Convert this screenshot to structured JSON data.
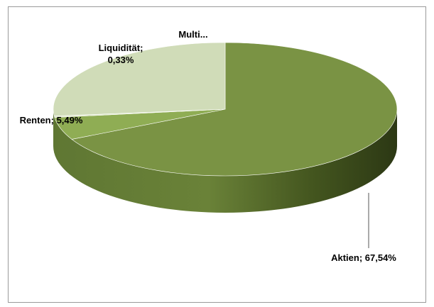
{
  "chart_data": {
    "type": "pie",
    "style": "3d",
    "title": "",
    "legend": "none",
    "slices": [
      {
        "label": "Aktien",
        "value": 67.54,
        "display": "Aktien; 67,54%",
        "color": "#7a9344"
      },
      {
        "label": "Renten",
        "value": 5.49,
        "display": "Renten; 5,49%",
        "color": "#8fad54"
      },
      {
        "label": "Liquidität",
        "value": 0.33,
        "display_lines": [
          "Liquidität;",
          "0,33%"
        ],
        "color": "#dde7c8"
      },
      {
        "label": "Multi...",
        "value": 26.64,
        "display": "Multi...",
        "color": "#d0dcb8"
      }
    ]
  }
}
